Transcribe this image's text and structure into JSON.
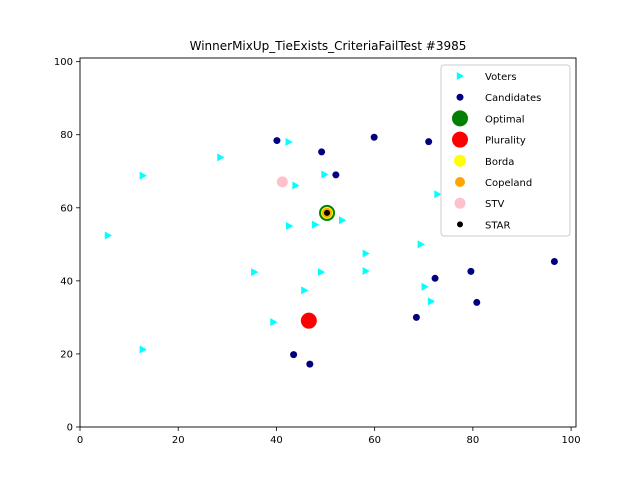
{
  "chart_data": {
    "type": "scatter",
    "title": "WinnerMixUp_TieExists_CriteriaFailTest #3985",
    "xlabel": "",
    "ylabel": "",
    "xlim": [
      0,
      101
    ],
    "ylim": [
      0,
      101
    ],
    "xticks": [
      0,
      20,
      40,
      60,
      80,
      100
    ],
    "yticks": [
      0,
      20,
      40,
      60,
      80,
      100
    ],
    "grid": false,
    "legend_position": "top-right",
    "series": [
      {
        "name": "Voters",
        "marker": "triangle-right",
        "color": "#00ffff",
        "points": [
          [
            12.8,
            68.8
          ],
          [
            28.6,
            73.8
          ],
          [
            42.5,
            78.0
          ],
          [
            43.9,
            66.1
          ],
          [
            49.8,
            69.1
          ],
          [
            5.7,
            52.4
          ],
          [
            42.6,
            55.0
          ],
          [
            47.9,
            55.4
          ],
          [
            53.4,
            56.6
          ],
          [
            72.8,
            63.7
          ],
          [
            35.5,
            42.4
          ],
          [
            49.1,
            42.4
          ],
          [
            58.2,
            47.5
          ],
          [
            58.2,
            42.7
          ],
          [
            69.4,
            50.0
          ],
          [
            45.7,
            37.4
          ],
          [
            70.2,
            38.4
          ],
          [
            71.5,
            34.4
          ],
          [
            39.4,
            28.7
          ],
          [
            12.8,
            21.2
          ]
        ]
      },
      {
        "name": "Candidates",
        "marker": "circle",
        "color": "#000080",
        "points": [
          [
            40.1,
            78.4
          ],
          [
            49.2,
            75.3
          ],
          [
            52.1,
            69.0
          ],
          [
            59.9,
            79.3
          ],
          [
            71.0,
            78.1
          ],
          [
            72.3,
            40.7
          ],
          [
            79.6,
            42.6
          ],
          [
            96.6,
            45.3
          ],
          [
            68.5,
            30.0
          ],
          [
            80.8,
            34.1
          ],
          [
            43.5,
            19.8
          ],
          [
            46.8,
            17.2
          ]
        ]
      },
      {
        "name": "Optimal",
        "marker": "circle",
        "color": "#008000",
        "points": [
          [
            50.3,
            58.6
          ]
        ]
      },
      {
        "name": "Plurality",
        "marker": "circle",
        "color": "#ff0000",
        "points": [
          [
            46.6,
            29.1
          ]
        ]
      },
      {
        "name": "Borda",
        "marker": "circle",
        "color": "#ffff00",
        "points": [
          [
            50.3,
            58.6
          ]
        ]
      },
      {
        "name": "Copeland",
        "marker": "circle",
        "color": "#ffa500",
        "points": [
          [
            50.3,
            58.6
          ]
        ]
      },
      {
        "name": "STV",
        "marker": "circle",
        "color": "#ffc0cb",
        "points": [
          [
            41.2,
            67.1
          ]
        ]
      },
      {
        "name": "STAR",
        "marker": "circle",
        "color": "#000000",
        "points": [
          [
            50.3,
            58.6
          ]
        ]
      }
    ]
  }
}
